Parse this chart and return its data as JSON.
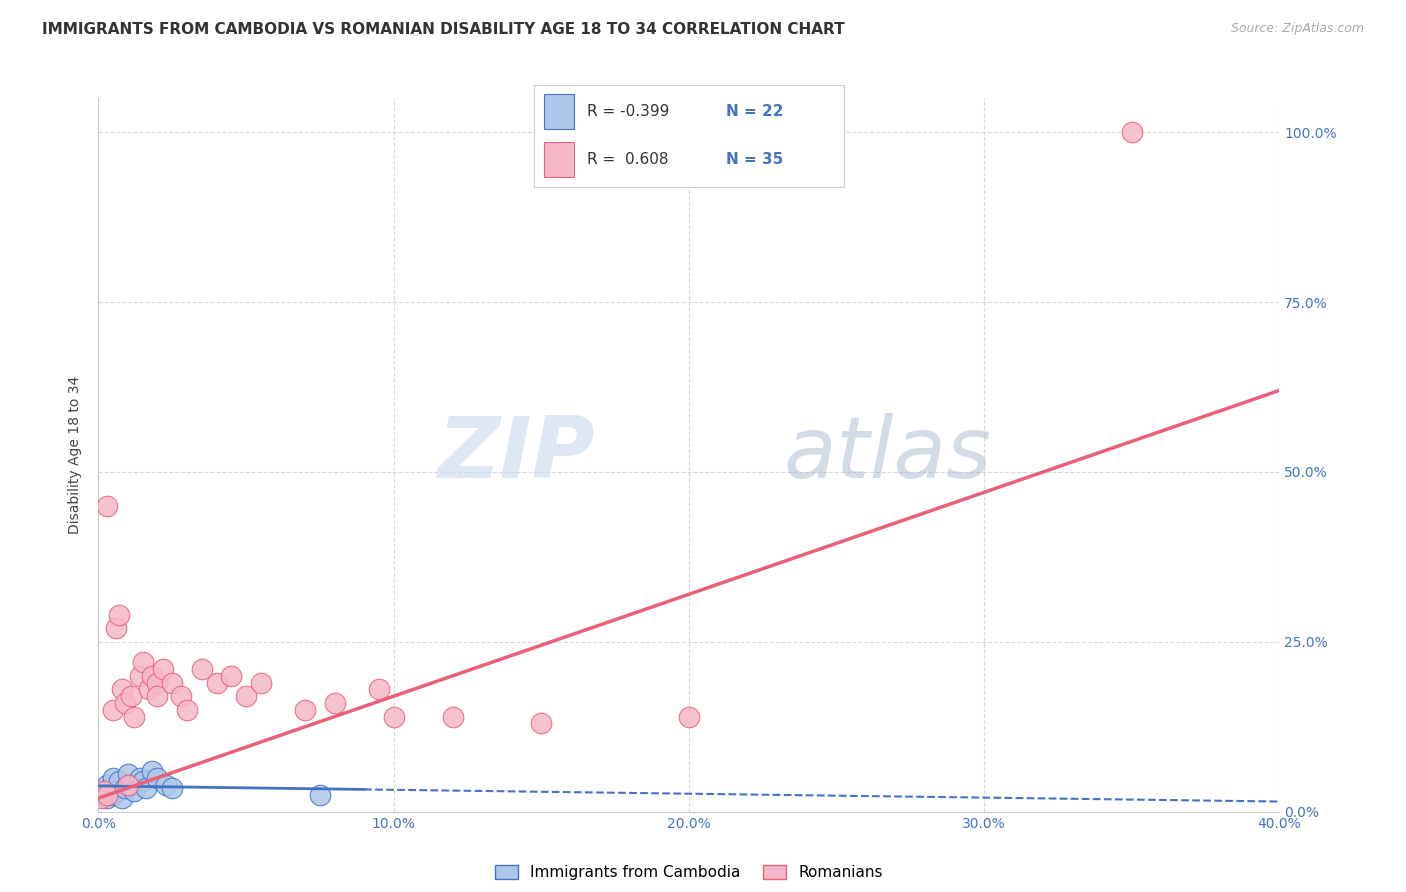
{
  "title": "IMMIGRANTS FROM CAMBODIA VS ROMANIAN DISABILITY AGE 18 TO 34 CORRELATION CHART",
  "source": "Source: ZipAtlas.com",
  "ylabel": "Disability Age 18 to 34",
  "xlim": [
    0.0,
    40.0
  ],
  "ylim": [
    0.0,
    105.0
  ],
  "x_tick_vals": [
    0.0,
    10.0,
    20.0,
    30.0,
    40.0
  ],
  "y_tick_vals": [
    0.0,
    25.0,
    50.0,
    75.0,
    100.0
  ],
  "cambodia_R": -0.399,
  "cambodia_N": 22,
  "romanian_R": 0.608,
  "romanian_N": 35,
  "cambodia_color": "#aec6e8",
  "romanian_color": "#f5b8c8",
  "cambodia_line_color": "#4472c4",
  "romanian_line_color": "#e8607a",
  "background_color": "#ffffff",
  "grid_color": "#d8d8d8",
  "watermark_zip": "ZIP",
  "watermark_atlas": "atlas",
  "cambodia_points_x": [
    0.1,
    0.2,
    0.3,
    0.3,
    0.4,
    0.5,
    0.5,
    0.6,
    0.7,
    0.8,
    0.9,
    1.0,
    1.1,
    1.2,
    1.4,
    1.5,
    1.6,
    1.8,
    2.0,
    2.3,
    2.5,
    7.5
  ],
  "cambodia_points_y": [
    2.5,
    3.0,
    2.0,
    4.0,
    3.5,
    2.5,
    5.0,
    3.0,
    4.5,
    2.0,
    3.5,
    5.5,
    4.0,
    3.0,
    5.0,
    4.5,
    3.5,
    6.0,
    5.0,
    4.0,
    3.5,
    2.5
  ],
  "romanian_points_x": [
    0.1,
    0.2,
    0.3,
    0.5,
    0.6,
    0.7,
    0.8,
    0.9,
    1.0,
    1.1,
    1.2,
    1.4,
    1.5,
    1.7,
    1.8,
    2.0,
    2.0,
    2.2,
    2.5,
    2.8,
    3.0,
    3.5,
    4.0,
    4.5,
    5.0,
    5.5,
    7.0,
    8.0,
    9.5,
    10.0,
    12.0,
    15.0,
    20.0,
    0.3,
    35.0
  ],
  "romanian_points_y": [
    2.0,
    3.0,
    2.5,
    15.0,
    27.0,
    29.0,
    18.0,
    16.0,
    4.0,
    17.0,
    14.0,
    20.0,
    22.0,
    18.0,
    20.0,
    19.0,
    17.0,
    21.0,
    19.0,
    17.0,
    15.0,
    21.0,
    19.0,
    20.0,
    17.0,
    19.0,
    15.0,
    16.0,
    18.0,
    14.0,
    14.0,
    13.0,
    14.0,
    45.0,
    100.0
  ],
  "cam_line_x0": 0.0,
  "cam_line_y0": 3.8,
  "cam_line_x1": 40.0,
  "cam_line_y1": 1.5,
  "cam_solid_end": 9.0,
  "rom_line_x0": 0.0,
  "rom_line_y0": 2.0,
  "rom_line_x1": 40.0,
  "rom_line_y1": 62.0,
  "title_fontsize": 11,
  "axis_label_fontsize": 10,
  "tick_fontsize": 10,
  "source_fontsize": 9
}
